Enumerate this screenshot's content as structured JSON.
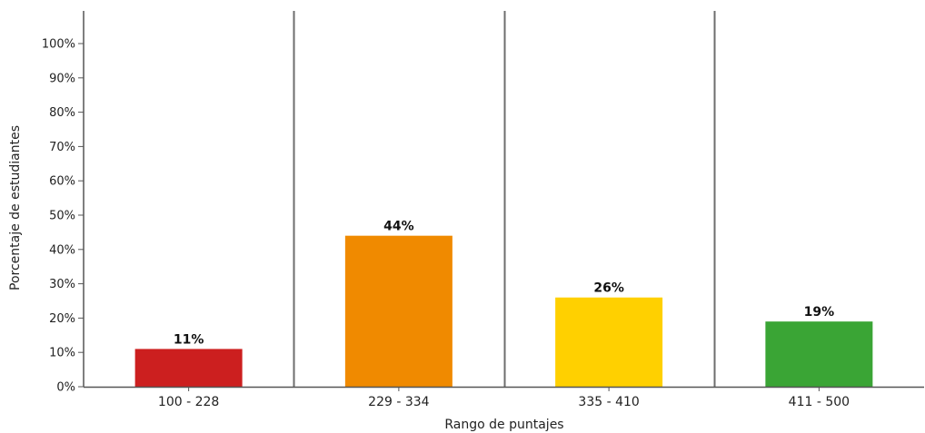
{
  "chart_data": {
    "type": "bar",
    "categories": [
      "100 - 228",
      "229 - 334",
      "335 - 410",
      "411 - 500"
    ],
    "values": [
      11,
      44,
      26,
      19
    ],
    "data_labels": [
      "11%",
      "44%",
      "26%",
      "19%"
    ],
    "colors": [
      "#cc1f1f",
      "#f08a00",
      "#ffd000",
      "#3aa535"
    ],
    "title": "",
    "xlabel": "Rango de puntajes",
    "ylabel": "Porcentaje de estudiantes",
    "ylim": [
      0,
      100
    ],
    "yticks": [
      0,
      10,
      20,
      30,
      40,
      50,
      60,
      70,
      80,
      90,
      100
    ],
    "ytick_labels": [
      "0%",
      "10%",
      "20%",
      "30%",
      "40%",
      "50%",
      "60%",
      "70%",
      "80%",
      "90%",
      "100%"
    ],
    "grid": false,
    "category_separators": true
  }
}
